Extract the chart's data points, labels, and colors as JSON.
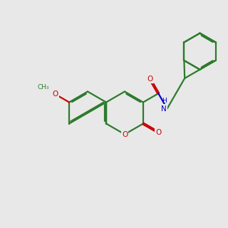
{
  "bg_color": "#e8e8e8",
  "bond_color": "#2d7a2d",
  "oxygen_color": "#cc0000",
  "nitrogen_color": "#0000cc",
  "lw": 1.6,
  "dbo": 0.055,
  "bl": 1.0
}
